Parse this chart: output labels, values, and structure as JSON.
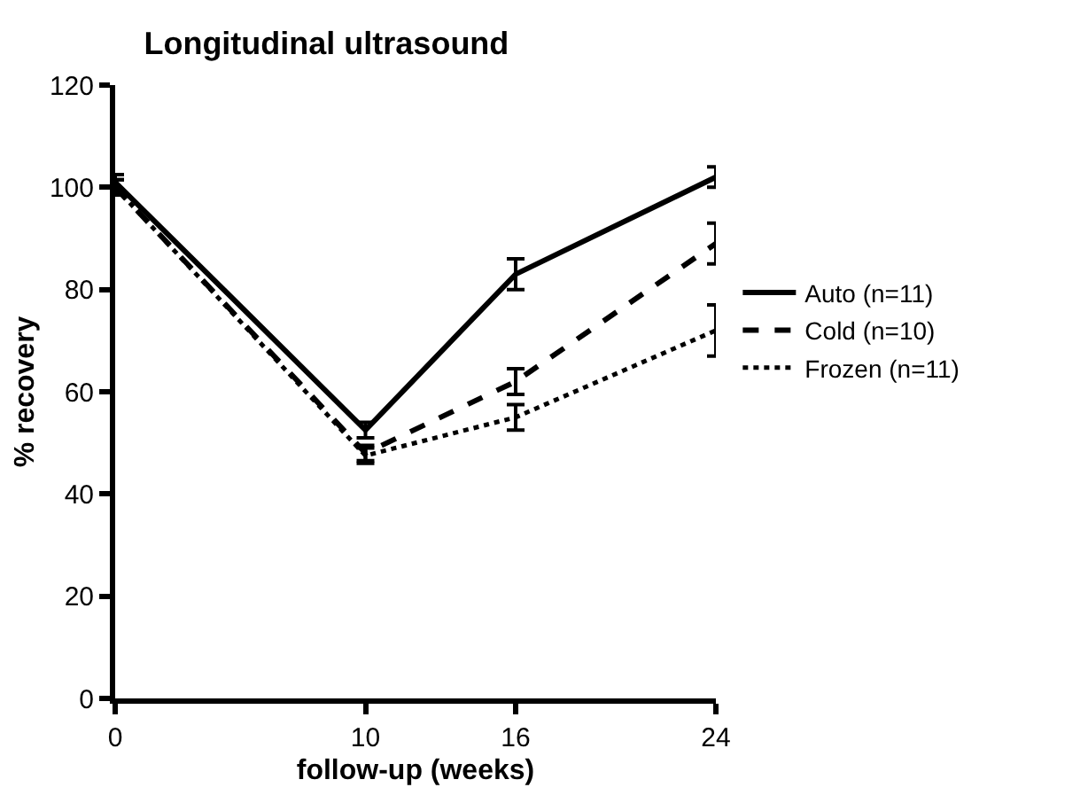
{
  "chart_data": {
    "type": "line",
    "title": "Longitudinal ultrasound",
    "xlabel": "follow-up (weeks)",
    "ylabel": "% recovery",
    "x": [
      0,
      10,
      16,
      24
    ],
    "series": [
      {
        "name": "Auto (n=11)",
        "color": "#000000",
        "line_style": "solid",
        "values": [
          101,
          52.5,
          83,
          102
        ],
        "errors": [
          1.5,
          1.5,
          3,
          2
        ]
      },
      {
        "name": "Cold (n=10)",
        "color": "#000000",
        "line_style": "dashed",
        "values": [
          100,
          48,
          62,
          89
        ],
        "errors": [
          1.5,
          1.5,
          2.5,
          4
        ]
      },
      {
        "name": "Frozen (n=11)",
        "color": "#000000",
        "line_style": "dotted",
        "values": [
          100,
          47.5,
          55,
          72
        ],
        "errors": [
          1.5,
          1.5,
          2.5,
          5
        ]
      }
    ],
    "xlim": [
      0,
      24
    ],
    "xticks": [
      0,
      10,
      16,
      24
    ],
    "ylim": [
      0,
      120
    ],
    "yticks": [
      0,
      20,
      40,
      60,
      80,
      100,
      120
    ],
    "legend": "right"
  }
}
